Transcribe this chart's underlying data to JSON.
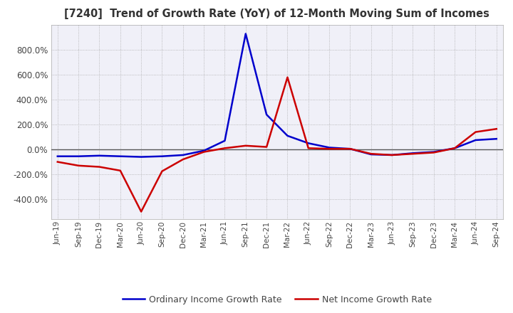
{
  "title": "[7240]  Trend of Growth Rate (YoY) of 12-Month Moving Sum of Incomes",
  "ordinary_income_dates": [
    "Jun-19",
    "Sep-19",
    "Dec-19",
    "Mar-20",
    "Jun-20",
    "Sep-20",
    "Dec-20",
    "Mar-21",
    "Jun-21",
    "Sep-21",
    "Dec-21",
    "Mar-22",
    "Jun-22",
    "Sep-22",
    "Dec-22",
    "Mar-23",
    "Jun-23",
    "Sep-23",
    "Dec-23",
    "Mar-24",
    "Jun-24",
    "Sep-24"
  ],
  "ordinary_income_values": [
    -55,
    -55,
    -50,
    -55,
    -60,
    -55,
    -45,
    -10,
    70,
    930,
    280,
    110,
    50,
    15,
    5,
    -40,
    -45,
    -30,
    -20,
    10,
    75,
    85
  ],
  "net_income_dates": [
    "Jun-19",
    "Sep-19",
    "Dec-19",
    "Mar-20",
    "Jun-20",
    "Sep-20",
    "Dec-20",
    "Mar-21",
    "Jun-21",
    "Sep-21",
    "Dec-21",
    "Mar-22",
    "Jun-22",
    "Sep-22",
    "Dec-22",
    "Mar-23",
    "Jun-23",
    "Sep-23",
    "Dec-23",
    "Mar-24",
    "Jun-24",
    "Sep-24"
  ],
  "net_income_values": [
    -100,
    -130,
    -140,
    -170,
    -500,
    -175,
    -80,
    -20,
    10,
    30,
    20,
    580,
    10,
    5,
    5,
    -35,
    -45,
    -35,
    -25,
    10,
    140,
    165
  ],
  "ordinary_color": "#0000cc",
  "net_color": "#cc0000",
  "ylim_min": -560,
  "ylim_max": 1000,
  "yticks": [
    -400,
    -200,
    0,
    200,
    400,
    600,
    800
  ],
  "background_color": "#ffffff",
  "plot_bg_color": "#f0f0f8",
  "grid_color": "#aaaaaa",
  "zero_line_color": "#555555",
  "legend_labels": [
    "Ordinary Income Growth Rate",
    "Net Income Growth Rate"
  ]
}
